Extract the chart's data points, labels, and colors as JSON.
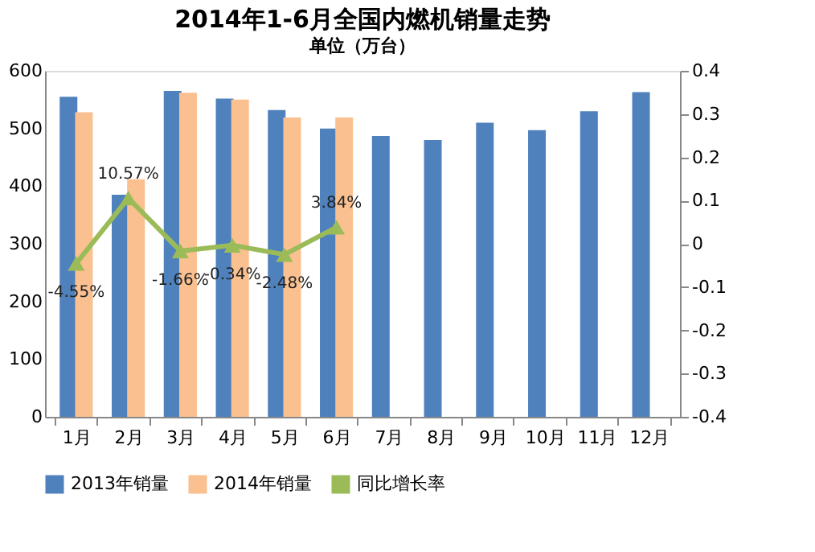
{
  "chart_data": {
    "type": "bar",
    "title": "2014年1-6月全国内燃机销量走势",
    "subtitle": "单位（万台）",
    "categories": [
      "1月",
      "2月",
      "3月",
      "4月",
      "5月",
      "6月",
      "7月",
      "8月",
      "9月",
      "10月",
      "11月",
      "12月"
    ],
    "series": [
      {
        "name": "2013年销量",
        "color": "#4f81bd",
        "values": [
          555,
          385,
          565,
          552,
          532,
          500,
          487,
          480,
          510,
          497,
          530,
          563
        ]
      },
      {
        "name": "2014年销量",
        "color": "#fac090",
        "values": [
          528,
          412,
          562,
          550,
          519,
          519,
          null,
          null,
          null,
          null,
          null,
          null
        ]
      },
      {
        "name": "同比增长率",
        "type": "line",
        "axis": "y2",
        "color": "#9bbb59",
        "marker": "triangle",
        "values": [
          -0.0455,
          0.1057,
          -0.0166,
          -0.0034,
          -0.0248,
          0.0384,
          null,
          null,
          null,
          null,
          null,
          null
        ],
        "value_labels": [
          "-4.55%",
          "10.57%",
          "-1.66%",
          "-0.34%",
          "-2.48%",
          "3.84%",
          null,
          null,
          null,
          null,
          null,
          null
        ]
      }
    ],
    "ylim": [
      0,
      600
    ],
    "yticks": [
      0,
      100,
      200,
      300,
      400,
      500,
      600
    ],
    "y2lim": [
      -0.4,
      0.4
    ],
    "y2ticks": [
      -0.4,
      -0.3,
      -0.2,
      -0.1,
      0,
      0.1,
      0.2,
      0.3,
      0.4
    ],
    "grid": false,
    "legend": "bottom"
  }
}
